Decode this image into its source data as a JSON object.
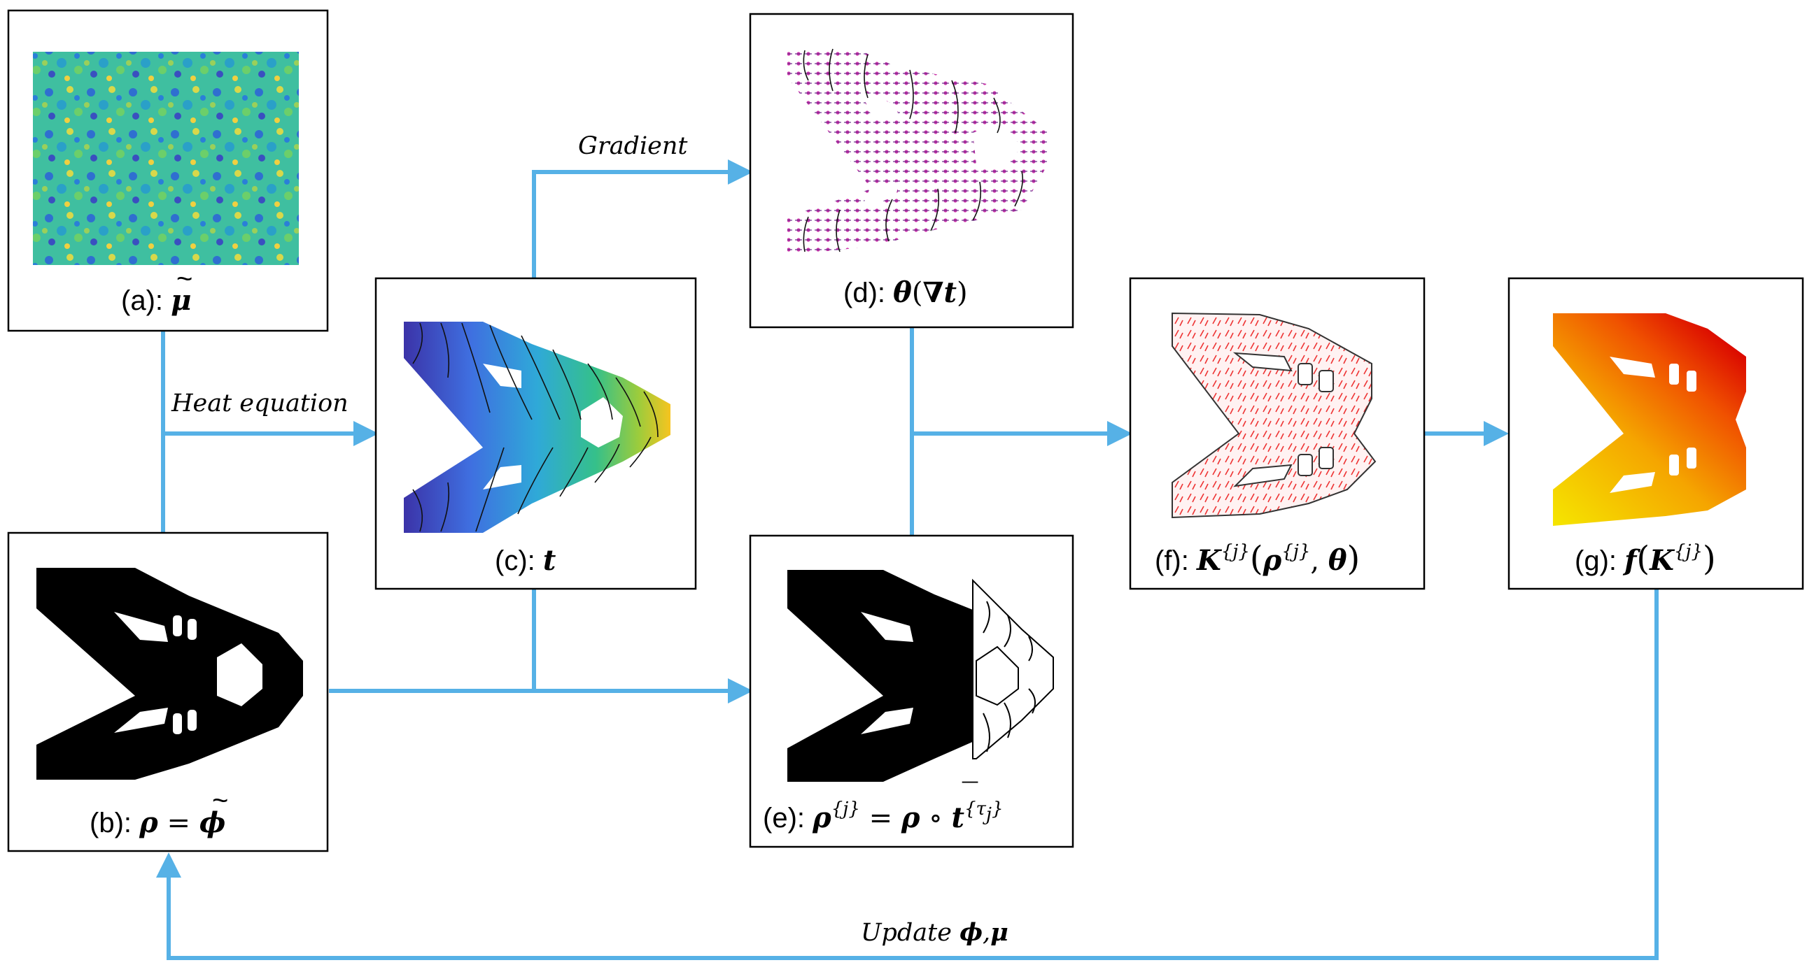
{
  "colors": {
    "arrow": "#56b1e6",
    "panel_border": "#000000",
    "structure": "#000000",
    "orientation_marks": "#cc33aa",
    "fiber_marks": "#ee3333"
  },
  "panels": {
    "a": {
      "prefix": "(a): ",
      "symbol": "μ",
      "accent": "~",
      "image": "random-field-heatmap"
    },
    "b": {
      "prefix": "(b): ",
      "lhs": "ρ",
      "eq": " = ",
      "rhs": "ϕ",
      "accent": "~",
      "image": "black-topology"
    },
    "c": {
      "prefix": "(c): ",
      "symbol": "t",
      "image": "gradient-time-field-with-isolines"
    },
    "d": {
      "prefix": "(d): ",
      "theta": "θ",
      "open": "(",
      "nabla": "∇",
      "t": "t",
      "close": ")",
      "image": "orientation-arrows-field"
    },
    "e": {
      "prefix": "(e): ",
      "rho": "ρ",
      "sup_j": "{j}",
      "eq": " = ",
      "rho2": "ρ",
      "circ": " ∘ ",
      "tbar": "t",
      "bar": "¯",
      "sup_tau": "{τ",
      "sub_j": "j",
      "sup_close": "}",
      "image": "partial-topology"
    },
    "f": {
      "prefix": "(f): ",
      "K": "K",
      "sup_j": "{j}",
      "open": "(",
      "rho": "ρ",
      "sup_j2": "{j}",
      "comma": ", ",
      "theta": "θ",
      "close": ")",
      "image": "fiber-orientation-outline"
    },
    "g": {
      "prefix": "(g): ",
      "f": "f",
      "open": "(",
      "K": "K",
      "sup_j": "{j}",
      "close": ")",
      "image": "red-yellow-field"
    }
  },
  "edges": {
    "heat": "Heat equation",
    "gradient": "Gradient",
    "update_word": "Update ",
    "update_phi": "ϕ",
    "update_comma": ",",
    "update_mu": "μ"
  }
}
